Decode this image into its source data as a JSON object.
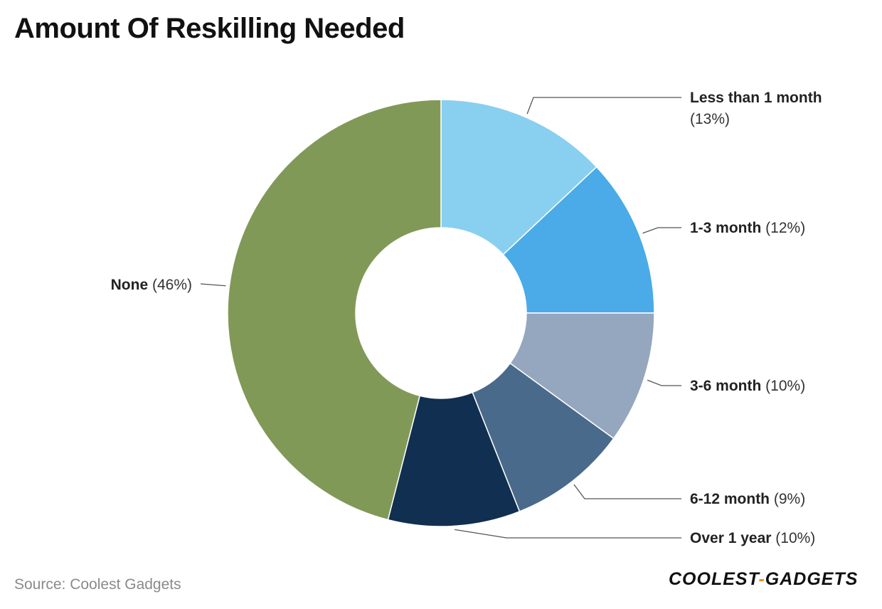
{
  "header": {
    "title": "Amount Of Reskilling Needed"
  },
  "footer": {
    "source": "Source: Coolest Gadgets",
    "logo_left": "COOLEST",
    "logo_sep": "-",
    "logo_right": "GADGETS"
  },
  "chart_data": {
    "type": "pie",
    "title": "Amount Of Reskilling Needed",
    "donut": true,
    "slices": [
      {
        "label": "Less than 1 month",
        "value": 13,
        "display": "(13%)",
        "color": "#89CFF0"
      },
      {
        "label": "1-3 month",
        "value": 12,
        "display": "(12%)",
        "color": "#4AABE8"
      },
      {
        "label": "3-6 month",
        "value": 10,
        "display": "(10%)",
        "color": "#95A7BE"
      },
      {
        "label": "6-12 month",
        "value": 9,
        "display": "(9%)",
        "color": "#4A6A8C"
      },
      {
        "label": "Over 1 year",
        "value": 10,
        "display": "(10%)",
        "color": "#112F50"
      },
      {
        "label": "None",
        "value": 46,
        "display": "(46%)",
        "color": "#819957"
      }
    ]
  }
}
